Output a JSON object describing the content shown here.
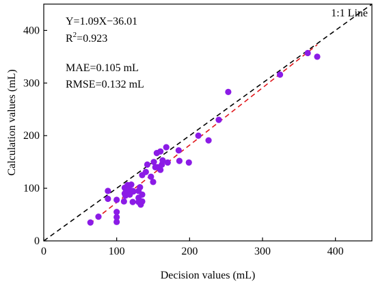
{
  "chart_data": {
    "type": "scatter",
    "xlabel": "Decision values (mL)",
    "ylabel": "Calculation values (mL)",
    "xlim": [
      0,
      450
    ],
    "ylim": [
      0,
      450
    ],
    "xticks": [
      0,
      100,
      200,
      300,
      400
    ],
    "yticks": [
      0,
      100,
      200,
      300,
      400
    ],
    "xtick_labels": [
      "0",
      "100",
      "200",
      "300",
      "400"
    ],
    "ytick_labels": [
      "0",
      "100",
      "200",
      "300",
      "400"
    ],
    "grid": false,
    "marker_color": "#8B1BE6",
    "annotations": {
      "equation": "Y=1.09X−36.01",
      "r2_prefix": "R",
      "r2_sup": "2",
      "r2_value": "=0.923",
      "mae": "MAE=0.105 mL",
      "rmse": "RMSE=0.132 mL",
      "identity_label": "1:1 Line"
    },
    "reference_lines": [
      {
        "kind": "identity",
        "from": [
          0,
          0
        ],
        "to": [
          450,
          450
        ],
        "color": "#000000",
        "style": "dashed"
      },
      {
        "kind": "fit",
        "slope": 1.09,
        "intercept": -36.01,
        "x_range": [
          63,
          375
        ],
        "color": "#E0161B",
        "style": "dashed"
      }
    ],
    "points": [
      [
        64,
        35
      ],
      [
        75,
        46
      ],
      [
        88,
        80
      ],
      [
        88,
        95
      ],
      [
        100,
        36
      ],
      [
        100,
        45
      ],
      [
        100,
        55
      ],
      [
        100,
        78
      ],
      [
        110,
        75
      ],
      [
        111,
        90
      ],
      [
        111,
        101
      ],
      [
        112,
        86
      ],
      [
        113,
        96
      ],
      [
        115,
        106
      ],
      [
        117,
        98
      ],
      [
        118,
        88
      ],
      [
        120,
        107
      ],
      [
        122,
        95
      ],
      [
        122,
        74
      ],
      [
        123,
        94
      ],
      [
        130,
        74
      ],
      [
        130,
        95
      ],
      [
        130,
        82
      ],
      [
        132,
        102
      ],
      [
        133,
        69
      ],
      [
        135,
        75
      ],
      [
        135,
        88
      ],
      [
        135,
        125
      ],
      [
        140,
        131
      ],
      [
        142,
        145
      ],
      [
        147,
        122
      ],
      [
        150,
        112
      ],
      [
        151,
        150
      ],
      [
        153,
        140
      ],
      [
        155,
        167
      ],
      [
        156,
        140
      ],
      [
        160,
        170
      ],
      [
        160,
        135
      ],
      [
        162,
        145
      ],
      [
        163,
        153
      ],
      [
        168,
        178
      ],
      [
        170,
        149
      ],
      [
        185,
        172
      ],
      [
        186,
        152
      ],
      [
        199,
        149
      ],
      [
        212,
        200
      ],
      [
        226,
        191
      ],
      [
        240,
        230
      ],
      [
        253,
        283
      ],
      [
        324,
        316
      ],
      [
        362,
        357
      ],
      [
        375,
        350
      ]
    ]
  }
}
